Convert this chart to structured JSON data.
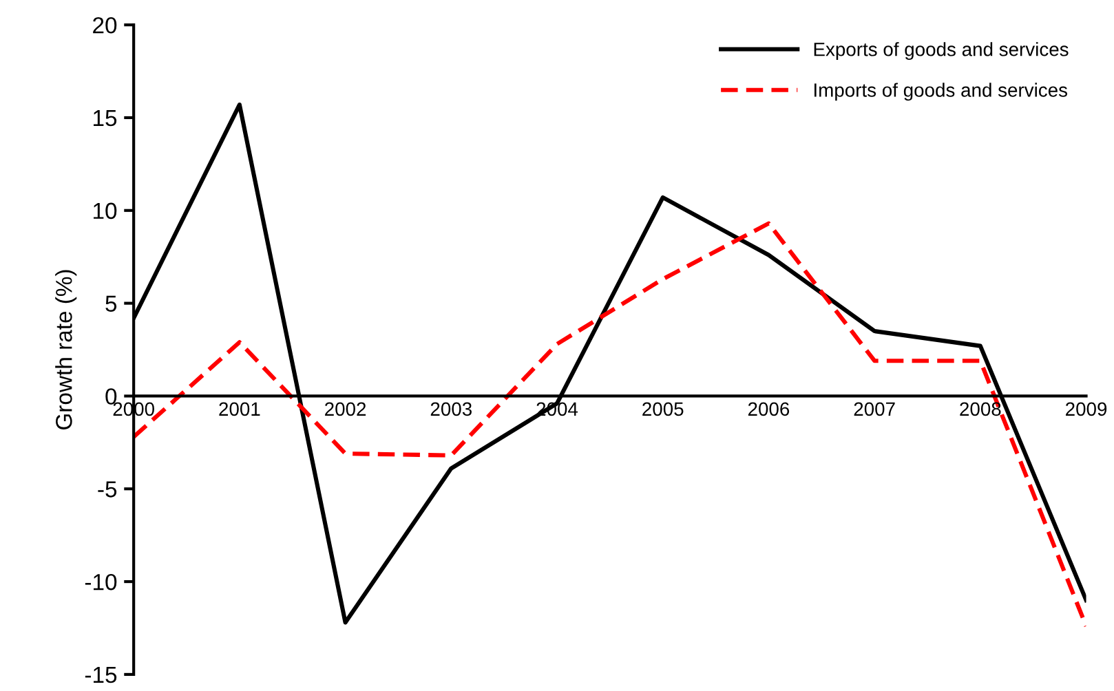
{
  "chart_data": {
    "type": "line",
    "ylabel": "Growth rate (%)",
    "categories": [
      "2000",
      "2001",
      "2002",
      "2003",
      "2004",
      "2005",
      "2006",
      "2007",
      "2008",
      "2009"
    ],
    "ylim": [
      -15,
      20
    ],
    "yticks": [
      -15,
      -10,
      -5,
      0,
      5,
      10,
      15,
      20
    ],
    "grid": false,
    "legend": "top right",
    "marker": "none",
    "series": [
      {
        "name": "Exports of goods and services",
        "color": "#000000",
        "line_style": "solid",
        "values": [
          4.2,
          15.7,
          -12.2,
          -3.9,
          -0.4,
          10.7,
          7.6,
          3.5,
          2.7,
          -11.0
        ]
      },
      {
        "name": "Imports of goods and services",
        "color": "#ff0000",
        "line_style": "dashed",
        "values": [
          -2.2,
          2.9,
          -3.1,
          -3.2,
          2.8,
          6.3,
          9.3,
          1.9,
          1.9,
          -12.4
        ]
      }
    ]
  }
}
